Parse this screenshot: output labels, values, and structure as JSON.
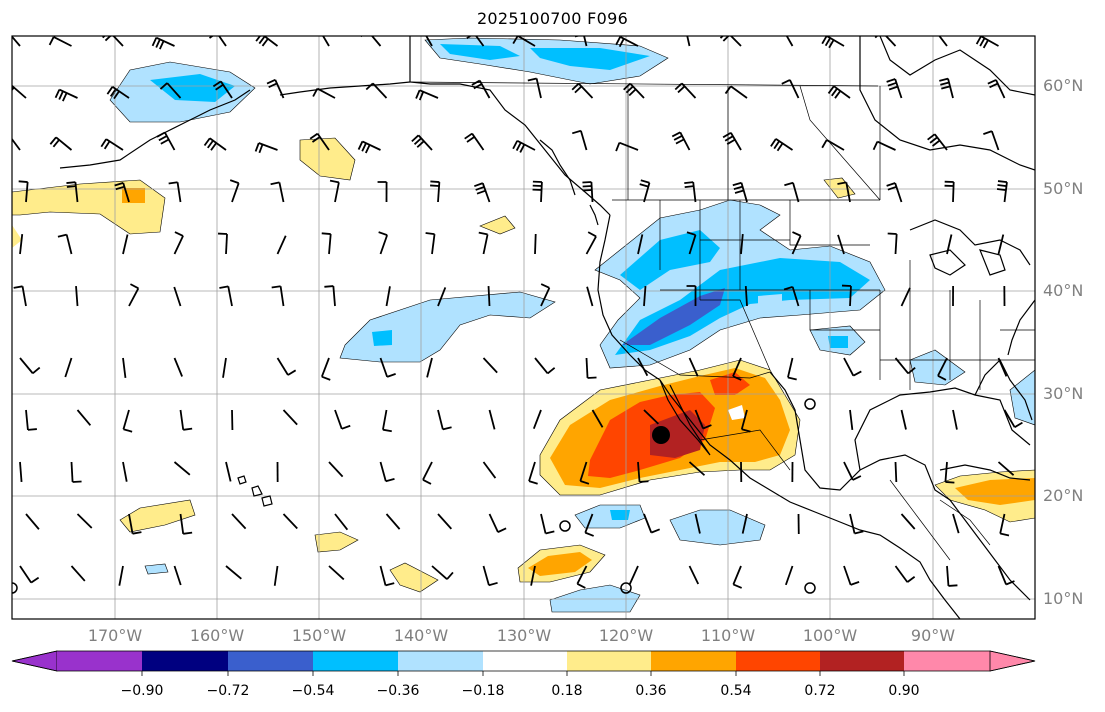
{
  "title": "2025100700 F096",
  "lat_labels": [
    "60°N",
    "50°N",
    "40°N",
    "30°N",
    "20°N",
    "10°N"
  ],
  "lon_labels": [
    "170°W",
    "160°W",
    "150°W",
    "140°W",
    "130°W",
    "120°W",
    "110°W",
    "100°W",
    "90°W"
  ],
  "colorbar": {
    "ticks": [
      "−0.90",
      "−0.72",
      "−0.54",
      "−0.36",
      "−0.18",
      "0.18",
      "0.36",
      "0.54",
      "0.72",
      "0.90"
    ],
    "colors": [
      "#9932cc",
      "#000080",
      "#3a5fcd",
      "#00bfff",
      "#b0e2ff",
      "#ffffff",
      "#ffec8b",
      "#ffa500",
      "#ff4500",
      "#b22222",
      "#ff88aa"
    ]
  },
  "map_features": {
    "coastline_color": "#000000",
    "grid_color": "#a0a0a0",
    "wind_barb_color": "#000000",
    "tropical_cyclone_marker": "filled-black-circle"
  }
}
